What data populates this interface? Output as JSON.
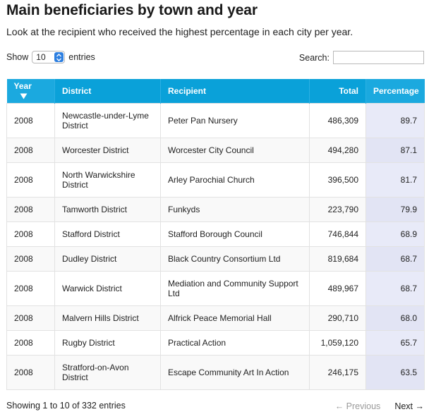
{
  "title": "Main beneficiaries by town and year",
  "subtitle": "Look at the recipient who received the highest percentage in each city per year.",
  "length_control": {
    "prefix": "Show",
    "value": "10",
    "suffix": "entries"
  },
  "search": {
    "label": "Search:",
    "value": ""
  },
  "table": {
    "columns": [
      "Year",
      "District",
      "Recipient",
      "Total",
      "Percentage"
    ],
    "sort_column": "Year",
    "rows": [
      {
        "year": "2008",
        "district": "Newcastle-under-Lyme District",
        "recipient": "Peter Pan Nursery",
        "total": "486,309",
        "percentage": "89.7"
      },
      {
        "year": "2008",
        "district": "Worcester District",
        "recipient": "Worcester City Council",
        "total": "494,280",
        "percentage": "87.1"
      },
      {
        "year": "2008",
        "district": "North Warwickshire District",
        "recipient": "Arley Parochial Church",
        "total": "396,500",
        "percentage": "81.7"
      },
      {
        "year": "2008",
        "district": "Tamworth District",
        "recipient": "Funkyds",
        "total": "223,790",
        "percentage": "79.9"
      },
      {
        "year": "2008",
        "district": "Stafford District",
        "recipient": "Stafford Borough Council",
        "total": "746,844",
        "percentage": "68.9"
      },
      {
        "year": "2008",
        "district": "Dudley District",
        "recipient": "Black Country Consortium Ltd",
        "total": "819,684",
        "percentage": "68.7"
      },
      {
        "year": "2008",
        "district": "Warwick District",
        "recipient": "Mediation and Community Support Ltd",
        "total": "489,967",
        "percentage": "68.7"
      },
      {
        "year": "2008",
        "district": "Malvern Hills District",
        "recipient": "Alfrick Peace Memorial Hall",
        "total": "290,710",
        "percentage": "68.0"
      },
      {
        "year": "2008",
        "district": "Rugby District",
        "recipient": "Practical Action",
        "total": "1,059,120",
        "percentage": "65.7"
      },
      {
        "year": "2008",
        "district": "Stratford-on-Avon District",
        "recipient": "Escape Community Art In Action",
        "total": "246,175",
        "percentage": "63.5"
      }
    ]
  },
  "info_text": "Showing 1 to 10 of 332 entries",
  "pagination": {
    "previous": "← Previous",
    "next": "Next →"
  },
  "colors": {
    "header_bg": "#0aa1d9",
    "header_sorted_bg": "#1ba9df",
    "row_alt_bg": "#f9f9f9",
    "pct_col_bg": "#e8eaf8",
    "pct_col_alt_bg": "#e2e4f4"
  },
  "icons": {
    "sort": "sort-desc-icon",
    "select": "select-arrows-icon"
  }
}
